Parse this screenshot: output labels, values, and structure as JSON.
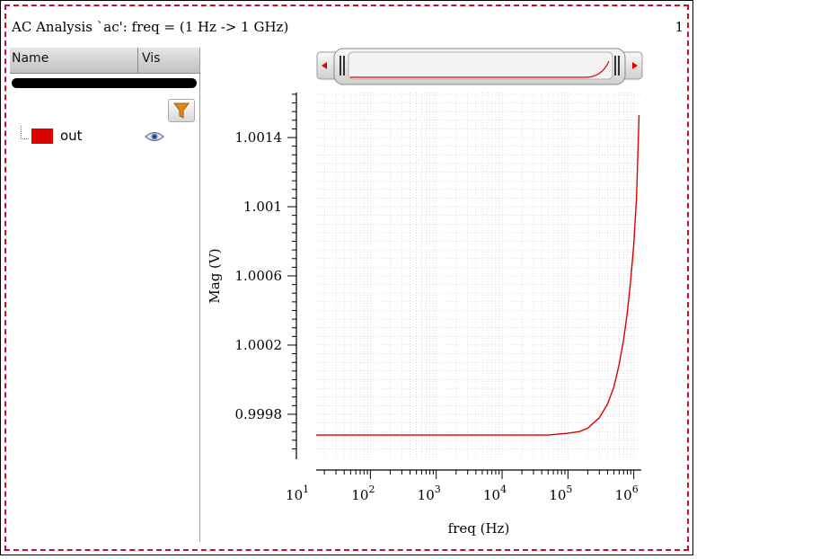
{
  "window": {
    "title": "AC Analysis `ac': freq = (1 Hz -> 1 GHz)",
    "page_number": "1"
  },
  "signal_list": {
    "columns": [
      "Name",
      "Vis"
    ],
    "filter_icon": "funnel-icon",
    "signals": [
      {
        "name": "out",
        "color": "#dd0000",
        "visible_icon": "eye-icon"
      }
    ]
  },
  "colors": {
    "trace": "#dd0000",
    "frame_dash": "#c8102e",
    "grid": "#c8c8c8"
  },
  "chart_data": {
    "type": "line",
    "xlabel": "freq (Hz)",
    "ylabel": "Mag (V)",
    "x_scale": "log",
    "xlim": [
      15,
      1300000
    ],
    "ylim": [
      0.99954,
      1.00166
    ],
    "x_ticks": [
      {
        "value": 10,
        "base": "10",
        "exp": "1"
      },
      {
        "value": 100,
        "base": "10",
        "exp": "2"
      },
      {
        "value": 1000,
        "base": "10",
        "exp": "3"
      },
      {
        "value": 10000,
        "base": "10",
        "exp": "4"
      },
      {
        "value": 100000,
        "base": "10",
        "exp": "5"
      },
      {
        "value": 1000000,
        "base": "10",
        "exp": "6"
      }
    ],
    "y_ticks": [
      {
        "value": 0.9998,
        "label": "0.9998"
      },
      {
        "value": 1.0002,
        "label": "1.0002"
      },
      {
        "value": 1.0006,
        "label": "1.0006"
      },
      {
        "value": 1.001,
        "label": "1.001"
      },
      {
        "value": 1.0014,
        "label": "1.0014"
      }
    ],
    "grid": true,
    "series": [
      {
        "name": "out",
        "x": [
          15,
          100,
          1000,
          10000,
          50000,
          100000,
          150000,
          200000,
          300000,
          400000,
          500000,
          600000,
          700000,
          800000,
          900000,
          1000000,
          1100000,
          1200000
        ],
        "y": [
          0.99968,
          0.99968,
          0.99968,
          0.99968,
          0.99968,
          0.99969,
          0.9997,
          0.99972,
          0.99978,
          0.99986,
          0.99996,
          1.00009,
          1.00023,
          1.00039,
          1.00058,
          1.00078,
          1.00105,
          1.00153
        ]
      }
    ]
  }
}
